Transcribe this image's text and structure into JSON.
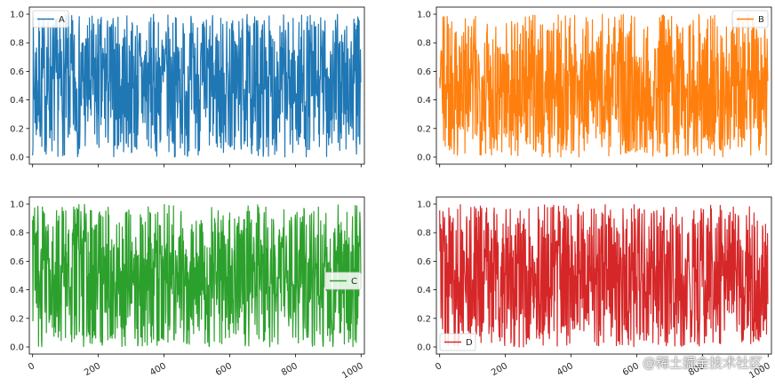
{
  "chart_data": {
    "type": "line",
    "layout": "2x2 subplots",
    "x": {
      "start": 0,
      "end": 999,
      "step": 1
    },
    "seed": 7,
    "series": [
      {
        "name": "A",
        "color": "#1f77b4",
        "legend": "upper-left",
        "ylim": [
          0.0,
          1.0
        ]
      },
      {
        "name": "B",
        "color": "#ff7f0e",
        "legend": "upper-right",
        "ylim": [
          0.0,
          1.0
        ]
      },
      {
        "name": "C",
        "color": "#2ca02c",
        "legend": "center-right",
        "ylim": [
          0.0,
          1.0
        ]
      },
      {
        "name": "D",
        "color": "#d62728",
        "legend": "lower-left",
        "ylim": [
          0.0,
          1.0
        ]
      }
    ],
    "yticks": [
      "0.0",
      "0.2",
      "0.4",
      "0.6",
      "0.8",
      "1.0"
    ],
    "xticks": [
      "0",
      "200",
      "400",
      "600",
      "800",
      "1000"
    ],
    "xtick_values": [
      0,
      200,
      400,
      600,
      800,
      1000
    ],
    "ytick_values": [
      0.0,
      0.2,
      0.4,
      0.6,
      0.8,
      1.0
    ],
    "xlim": [
      -10,
      1010
    ],
    "xtick_rotation": "30deg"
  },
  "watermark": "@稀土掘金技术社区"
}
